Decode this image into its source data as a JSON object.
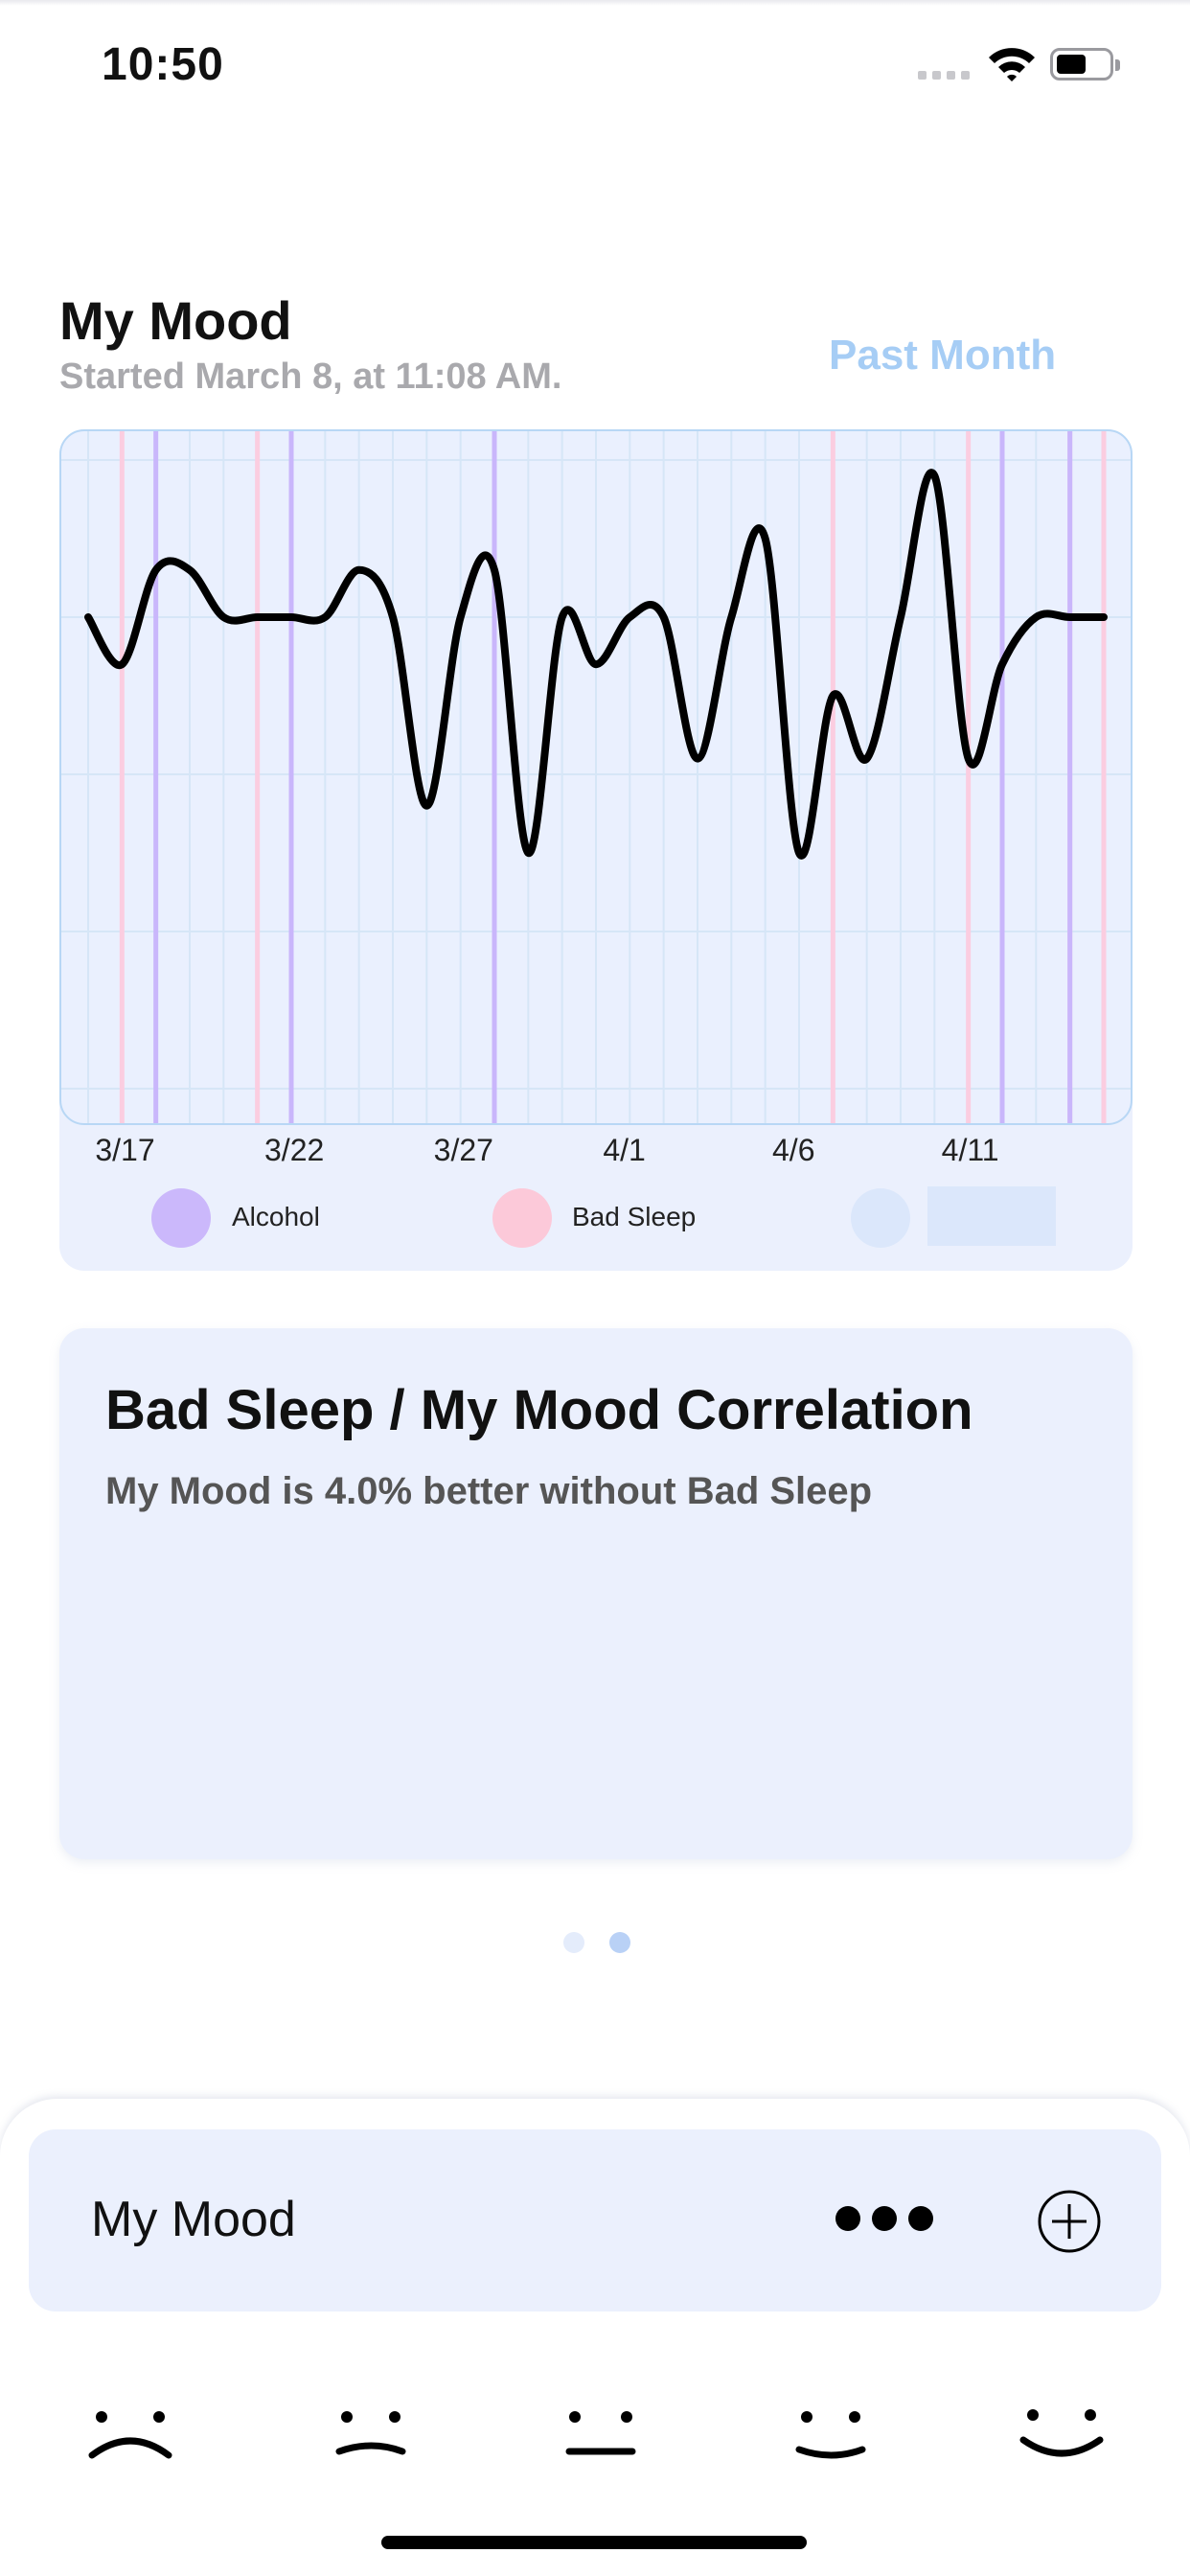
{
  "status_bar": {
    "time": "10:50"
  },
  "header": {
    "title": "My Mood",
    "subtitle": "Started March 8, at 11:08 AM.",
    "range_button": "Past Month"
  },
  "chart_data": {
    "type": "line",
    "x": [
      "3/16",
      "3/17",
      "3/18",
      "3/19",
      "3/20",
      "3/21",
      "3/22",
      "3/23",
      "3/24",
      "3/25",
      "3/26",
      "3/27",
      "3/28",
      "3/29",
      "3/30",
      "3/31",
      "4/1",
      "4/2",
      "4/3",
      "4/4",
      "4/5",
      "4/6",
      "4/7",
      "4/8",
      "4/9",
      "4/10",
      "4/11",
      "4/12",
      "4/13",
      "4/14",
      "4/15"
    ],
    "series": [
      {
        "values": [
          0,
          -0.3,
          0.3,
          0.3,
          0,
          0,
          0,
          0,
          0.3,
          0,
          -1.2,
          0,
          0.3,
          -1.5,
          0,
          -0.3,
          0,
          0,
          -0.9,
          0,
          0.5,
          -1.5,
          -0.5,
          -0.9,
          0,
          0.9,
          -0.9,
          -0.3,
          0,
          0,
          0
        ]
      }
    ],
    "x_tick_labels": [
      "3/17",
      "3/22",
      "3/27",
      "4/1",
      "4/6",
      "4/11"
    ],
    "events": {
      "alcohol": [
        "3/18",
        "3/22",
        "3/28",
        "4/12",
        "4/14"
      ],
      "bad_sleep": [
        "3/17",
        "3/21",
        "4/7",
        "4/11",
        "4/14",
        "4/15"
      ]
    },
    "legend": [
      {
        "label": "Alcohol",
        "color": "#cbb8fb"
      },
      {
        "label": "Bad Sleep",
        "color": "#fcc9d9"
      },
      {
        "label": "",
        "color": "#dbe7fb"
      }
    ],
    "colors": {
      "line": "#000000",
      "alcohol": "#c9b6fb",
      "bad_sleep": "#fbcde0",
      "grid": "#d6e6f7"
    },
    "grid": true
  },
  "correlation": {
    "title": "Bad Sleep / My Mood Correlation",
    "text": "My Mood is 4.0% better without Bad Sleep"
  },
  "pager": {
    "count": 2,
    "active": 1
  },
  "tracker": {
    "name": "My Mood",
    "more_icon": "ellipsis-icon",
    "add_icon": "plus-circle-icon"
  },
  "mood_faces": [
    "very-sad-face-icon",
    "sad-face-icon",
    "neutral-face-icon",
    "happy-face-icon",
    "very-happy-face-icon"
  ]
}
